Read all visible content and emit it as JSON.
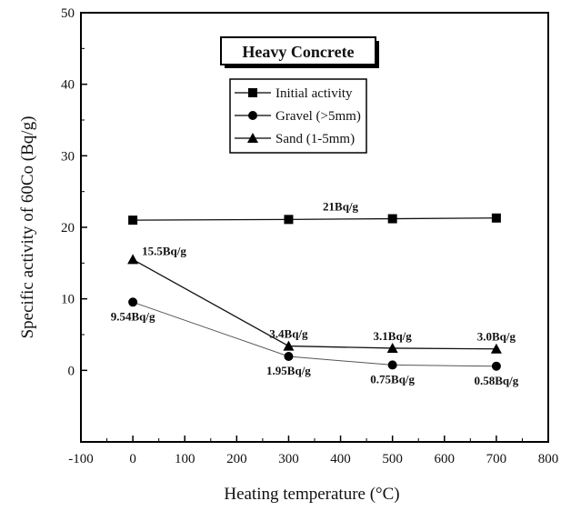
{
  "chart_data": {
    "type": "line",
    "title": "Heavy Concrete",
    "xlabel": "Heating temperature (°C)",
    "ylabel": "Specific activity of 60Co (Bq/g)",
    "xlim": [
      -100,
      800
    ],
    "ylim": [
      -10,
      50
    ],
    "xticks": [
      -100,
      0,
      100,
      200,
      300,
      400,
      500,
      600,
      700,
      800
    ],
    "yticks": [
      0,
      10,
      20,
      30,
      40,
      50
    ],
    "grid": false,
    "legend_position": "top-center",
    "series": [
      {
        "name": "Initial activity",
        "marker": "square",
        "x": [
          0,
          300,
          500,
          700
        ],
        "y": [
          21.0,
          21.1,
          21.2,
          21.3
        ]
      },
      {
        "name": "Gravel (>5mm)",
        "marker": "circle",
        "x": [
          0,
          300,
          500,
          700
        ],
        "y": [
          9.54,
          1.95,
          0.75,
          0.58
        ]
      },
      {
        "name": "Sand (1-5mm)",
        "marker": "triangle",
        "x": [
          0,
          300,
          500,
          700
        ],
        "y": [
          15.5,
          3.4,
          3.1,
          3.0
        ]
      }
    ],
    "annotations": [
      {
        "text": "21Bq/g",
        "x": 400,
        "y": 21.2,
        "anchor": "above"
      },
      {
        "text": "15.5Bq/g",
        "x": 0,
        "y": 15.5,
        "anchor": "right"
      },
      {
        "text": "9.54Bq/g",
        "x": 0,
        "y": 9.54,
        "anchor": "below"
      },
      {
        "text": "3.4Bq/g",
        "x": 300,
        "y": 3.4,
        "anchor": "above"
      },
      {
        "text": "3.1Bq/g",
        "x": 500,
        "y": 3.1,
        "anchor": "above"
      },
      {
        "text": "3.0Bq/g",
        "x": 700,
        "y": 3.0,
        "anchor": "above"
      },
      {
        "text": "1.95Bq/g",
        "x": 300,
        "y": 1.95,
        "anchor": "below"
      },
      {
        "text": "0.75Bq/g",
        "x": 500,
        "y": 0.75,
        "anchor": "below"
      },
      {
        "text": "0.58Bq/g",
        "x": 700,
        "y": 0.58,
        "anchor": "below"
      }
    ]
  }
}
